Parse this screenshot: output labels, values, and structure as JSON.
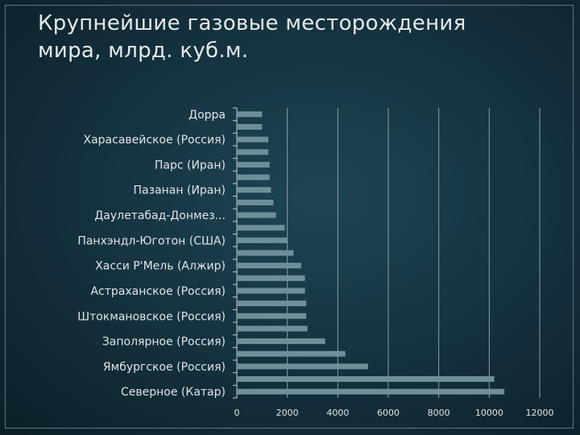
{
  "slide": {
    "title_line1": "Крупнейшие газовые месторождения",
    "title_line2": "мира, млрд. куб.м."
  },
  "chart_data": {
    "type": "bar",
    "orientation": "horizontal",
    "title": "Крупнейшие газовые месторождения мира, млрд. куб.м.",
    "categories": [
      "Северное (Катар)",
      "",
      "Ямбургское (Россия)",
      "",
      "Заполярное (Россия)",
      "",
      "Штокмановское (Россия)",
      "",
      "Астраханское (Россия)",
      "",
      "Хасси Р'Мель (Алжир)",
      "",
      "Панхэндл-Юготон (США)",
      "",
      "Даулетабад-Донмез...",
      "",
      "Пазанан (Иран)",
      "",
      "Парс (Иран)",
      "",
      "Харасавейское (Россия)",
      "",
      "Дорра"
    ],
    "values": [
      10600,
      10200,
      5200,
      4300,
      3500,
      2800,
      2750,
      2750,
      2700,
      2700,
      2550,
      2250,
      2000,
      1900,
      1550,
      1450,
      1350,
      1300,
      1300,
      1250,
      1250,
      1000,
      1000
    ],
    "xlim": [
      0,
      12000
    ],
    "xticks": [
      0,
      2000,
      4000,
      6000,
      8000,
      10000,
      12000
    ],
    "grid": "vertical",
    "legend": "none",
    "bar_color": "#6f8f98",
    "text_color": "#e1e5e6"
  }
}
